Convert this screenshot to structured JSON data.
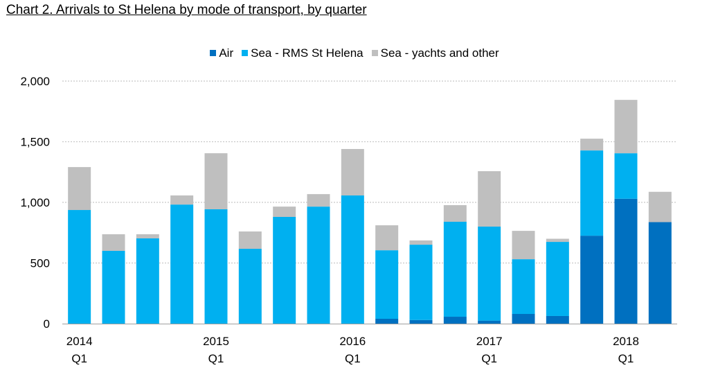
{
  "title": "Chart 2. Arrivals to St Helena by mode of transport, by quarter",
  "chart_data": {
    "type": "bar",
    "stacked": true,
    "title": "Chart 2. Arrivals to St Helena by mode of transport, by quarter",
    "xlabel": "",
    "ylabel": "",
    "ylim": [
      0,
      2000
    ],
    "yticks": [
      "0",
      "500",
      "1,000",
      "1,500",
      "2,000"
    ],
    "ytick_values": [
      0,
      500,
      1000,
      1500,
      2000
    ],
    "grid": "horizontal dotted",
    "legend": "top-center",
    "categories": [
      "2014 Q1",
      "2014 Q2",
      "2014 Q3",
      "2014 Q4",
      "2015 Q1",
      "2015 Q2",
      "2015 Q3",
      "2015 Q4",
      "2016 Q1",
      "2016 Q2",
      "2016 Q3",
      "2016 Q4",
      "2017 Q1",
      "2017 Q2",
      "2017 Q3",
      "2017 Q4",
      "2018 Q1",
      "2018 Q2"
    ],
    "xtick_labels": [
      {
        "index": 0,
        "year": "2014",
        "quarter": "Q1"
      },
      {
        "index": 4,
        "year": "2015",
        "quarter": "Q1"
      },
      {
        "index": 8,
        "year": "2016",
        "quarter": "Q1"
      },
      {
        "index": 12,
        "year": "2017",
        "quarter": "Q1"
      },
      {
        "index": 16,
        "year": "2018",
        "quarter": "Q1"
      }
    ],
    "series": [
      {
        "name": "Air",
        "color": "#0070C0",
        "values": [
          0,
          0,
          0,
          0,
          0,
          0,
          0,
          0,
          0,
          40,
          30,
          57,
          25,
          80,
          63,
          725,
          1030,
          837
        ]
      },
      {
        "name": "Sea - RMS St Helena",
        "color": "#00B0F0",
        "values": [
          937,
          600,
          703,
          982,
          943,
          617,
          880,
          965,
          1057,
          565,
          621,
          783,
          775,
          451,
          611,
          703,
          375,
          0
        ]
      },
      {
        "name": "Sea - yachts and other",
        "color": "#BFBFBF",
        "values": [
          354,
          137,
          34,
          75,
          462,
          143,
          85,
          103,
          383,
          206,
          35,
          137,
          457,
          234,
          26,
          97,
          440,
          250
        ]
      }
    ]
  }
}
